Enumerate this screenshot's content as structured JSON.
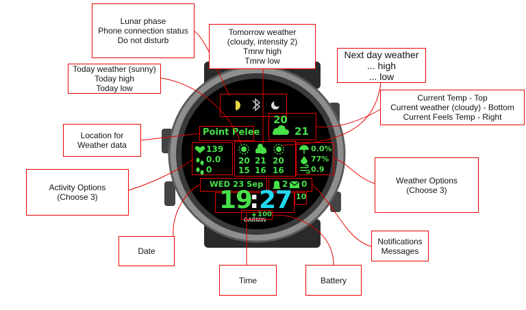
{
  "callouts": {
    "lunar": [
      "Lunar phase",
      "Phone connection status",
      "Do not disturb"
    ],
    "tomorrow": [
      "Tomorrow weather",
      "(cloudy, intensity 2)",
      "Tmrw high",
      "Tmrw low"
    ],
    "nextday": [
      "Next day weather",
      "... high",
      "... low"
    ],
    "today": [
      "Today weather (sunny)",
      "Today high",
      "Today low"
    ],
    "current": [
      "Current Temp - Top",
      "Current weather (cloudy) - Bottom",
      "Current Feels Temp - Right"
    ],
    "location": [
      "Location for",
      "Weather data"
    ],
    "activity": [
      "Activity Options",
      "(Choose 3)"
    ],
    "weather_options": [
      "Weather Options",
      "(Choose 3)"
    ],
    "date": "Date",
    "time": "Time",
    "battery": "Battery",
    "notifications": [
      "Notifications",
      "Messages"
    ]
  },
  "watch": {
    "brand": "GARMIN",
    "location": "Point Pelee",
    "current_temp": "20",
    "current_feels": "21",
    "activity": [
      "139",
      "0.0",
      "0"
    ],
    "forecast_high": [
      "20",
      "21",
      "20"
    ],
    "forecast_low": [
      "15",
      "16",
      "16"
    ],
    "weather_opts": [
      "0.0%",
      "77%",
      "0.9"
    ],
    "date": "WED 23 Sep",
    "notifications": "2",
    "messages": "0",
    "time_hour": "19",
    "time_sep": ":",
    "time_min": "27",
    "seconds": "10",
    "battery": "100",
    "icons": [
      "moon-phase-icon",
      "bluetooth-icon",
      "do-not-disturb-icon",
      "cloud-icon",
      "heart-icon",
      "steps-icon",
      "sun-icon",
      "cloud-sun-icon",
      "umbrella-icon",
      "humidity-icon",
      "wind-icon",
      "bell-icon",
      "envelope-icon",
      "lightning-icon"
    ],
    "colors": {
      "accent_green": "#48e04a",
      "time_minutes": "#20d8f0",
      "callout_border": "#e60000"
    }
  }
}
